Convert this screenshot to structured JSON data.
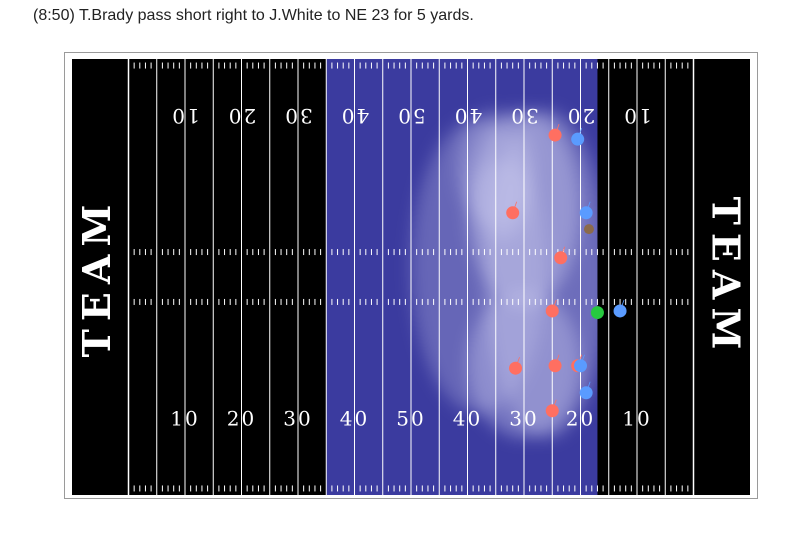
{
  "play": {
    "title": "(8:50) T.Brady pass short right to J.White to NE 23 for 5 yards."
  },
  "chart_data": {
    "type": "scatter",
    "title": "(8:50) T.Brady pass short right to J.White to NE 23 for 5 yards.",
    "xlabel": "",
    "ylabel": "",
    "x_domain": [
      0,
      120
    ],
    "y_domain": [
      0,
      53.3
    ],
    "endzone_labels": [
      "TEAM",
      "TEAM"
    ],
    "yard_numbers_bottom": [
      "10",
      "20",
      "30",
      "40",
      "50",
      "40",
      "30",
      "20",
      "10"
    ],
    "yard_numbers_top": [
      "10",
      "20",
      "30",
      "40",
      "50",
      "40",
      "30",
      "20",
      "10"
    ],
    "yard_number_positions": [
      20,
      30,
      40,
      50,
      60,
      70,
      80,
      90,
      100
    ],
    "highlight_range": [
      45,
      93
    ],
    "colors": {
      "field": "#000000",
      "lines": "#ffffff",
      "highlight": "#3b3b9f",
      "offense": "#ff6f61",
      "defense": "#5a9bff",
      "ball": "#27c93f",
      "target": "#8b6a4b"
    },
    "density": [
      {
        "x": 80,
        "y": 35,
        "rx": 10,
        "ry": 12,
        "level": 0.45
      },
      {
        "x": 80,
        "y": 16,
        "rx": 10,
        "ry": 9,
        "level": 0.4
      },
      {
        "x": 84,
        "y": 27,
        "rx": 11,
        "ry": 20,
        "level": 0.35
      },
      {
        "x": 75,
        "y": 40,
        "rx": 7,
        "ry": 7,
        "level": 0.3
      },
      {
        "x": 72,
        "y": 28,
        "rx": 12,
        "ry": 18,
        "level": 0.3
      },
      {
        "x": 76,
        "y": 36,
        "rx": 5,
        "ry": 5,
        "level": 0.35
      }
    ],
    "series": [
      {
        "name": "offense",
        "points": [
          {
            "x": 85.5,
            "y": 44.0
          },
          {
            "x": 78.0,
            "y": 34.5
          },
          {
            "x": 86.5,
            "y": 29.0
          },
          {
            "x": 85.0,
            "y": 22.5
          },
          {
            "x": 78.5,
            "y": 15.5
          },
          {
            "x": 85.5,
            "y": 15.8
          },
          {
            "x": 89.5,
            "y": 15.8
          },
          {
            "x": 85.0,
            "y": 10.3
          }
        ]
      },
      {
        "name": "defense",
        "points": [
          {
            "x": 89.5,
            "y": 43.5
          },
          {
            "x": 91.0,
            "y": 34.5
          },
          {
            "x": 97.0,
            "y": 22.5
          },
          {
            "x": 90.0,
            "y": 15.8
          },
          {
            "x": 91.0,
            "y": 12.5
          }
        ]
      },
      {
        "name": "football",
        "points": [
          {
            "x": 93.0,
            "y": 22.3
          }
        ]
      },
      {
        "name": "targeted-receiver",
        "points": [
          {
            "x": 91.5,
            "y": 32.5
          }
        ]
      }
    ]
  }
}
